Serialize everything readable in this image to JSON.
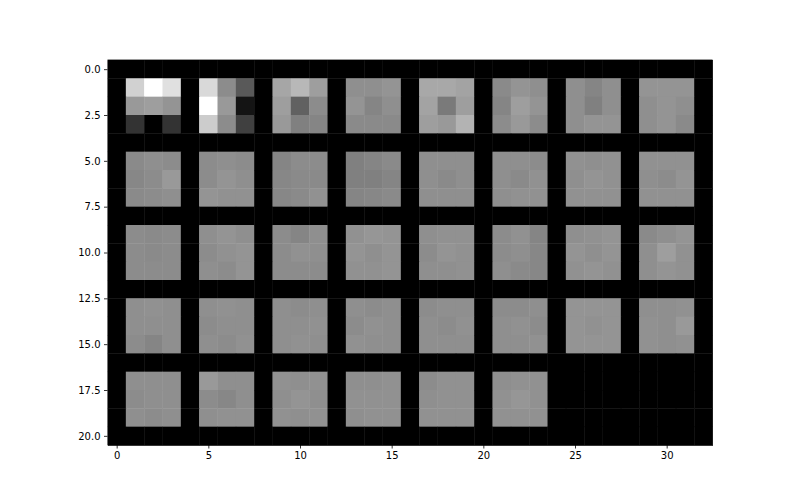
{
  "chart_data": {
    "type": "heatmap",
    "xlim": [
      -0.5,
      32.5
    ],
    "ylim": [
      20.5,
      -0.5
    ],
    "xticks": [
      0,
      5,
      10,
      15,
      20,
      25,
      30
    ],
    "yticks": [
      {
        "value": 0,
        "label": "0.0"
      },
      2.5,
      {
        "value": 5,
        "label": "5.0"
      },
      7.5,
      {
        "value": 10,
        "label": "10.0"
      },
      12.5,
      {
        "value": 15,
        "label": "15.0"
      },
      17.5,
      {
        "value": 20,
        "label": "20.0"
      }
    ],
    "cells": [
      [
        0,
        0,
        0,
        0,
        0,
        0,
        0,
        0,
        0,
        0,
        0,
        0,
        0,
        0,
        0,
        0,
        0,
        0,
        0,
        0,
        0,
        0,
        0,
        0,
        0,
        0,
        0,
        0,
        0,
        0,
        0,
        0,
        0
      ],
      [
        0,
        0.82,
        1.0,
        0.88,
        0,
        0.85,
        0.55,
        0.35,
        0,
        0.65,
        0.72,
        0.62,
        0,
        0.56,
        0.56,
        0.58,
        0,
        0.66,
        0.66,
        0.64,
        0,
        0.54,
        0.58,
        0.56,
        0,
        0.56,
        0.52,
        0.56,
        0,
        0.58,
        0.58,
        0.58,
        0
      ],
      [
        0,
        0.6,
        0.62,
        0.58,
        0,
        1.0,
        0.6,
        0.08,
        0,
        0.62,
        0.38,
        0.55,
        0,
        0.58,
        0.52,
        0.56,
        0,
        0.64,
        0.48,
        0.62,
        0,
        0.52,
        0.62,
        0.58,
        0,
        0.56,
        0.5,
        0.56,
        0,
        0.56,
        0.58,
        0.56,
        0
      ],
      [
        0,
        0.2,
        0.0,
        0.2,
        0,
        0.8,
        0.55,
        0.25,
        0,
        0.6,
        0.5,
        0.52,
        0,
        0.54,
        0.54,
        0.54,
        0,
        0.62,
        0.6,
        0.7,
        0,
        0.55,
        0.6,
        0.55,
        0,
        0.56,
        0.58,
        0.58,
        0,
        0.56,
        0.58,
        0.54,
        0
      ],
      [
        0,
        0,
        0,
        0,
        0,
        0,
        0,
        0,
        0,
        0,
        0,
        0,
        0,
        0,
        0,
        0,
        0,
        0,
        0,
        0,
        0,
        0,
        0,
        0,
        0,
        0,
        0,
        0,
        0,
        0,
        0,
        0,
        0
      ],
      [
        0,
        0.54,
        0.56,
        0.55,
        0,
        0.55,
        0.56,
        0.55,
        0,
        0.52,
        0.55,
        0.55,
        0,
        0.5,
        0.52,
        0.54,
        0,
        0.56,
        0.56,
        0.56,
        0,
        0.56,
        0.56,
        0.55,
        0,
        0.57,
        0.56,
        0.57,
        0,
        0.57,
        0.57,
        0.57,
        0
      ],
      [
        0,
        0.53,
        0.55,
        0.6,
        0,
        0.55,
        0.58,
        0.56,
        0,
        0.53,
        0.54,
        0.54,
        0,
        0.5,
        0.5,
        0.52,
        0,
        0.56,
        0.54,
        0.56,
        0,
        0.56,
        0.54,
        0.57,
        0,
        0.56,
        0.58,
        0.57,
        0,
        0.56,
        0.55,
        0.58,
        0
      ],
      [
        0,
        0.54,
        0.55,
        0.56,
        0,
        0.58,
        0.57,
        0.57,
        0,
        0.53,
        0.54,
        0.57,
        0,
        0.52,
        0.53,
        0.54,
        0,
        0.56,
        0.56,
        0.56,
        0,
        0.56,
        0.57,
        0.57,
        0,
        0.57,
        0.57,
        0.57,
        0,
        0.57,
        0.57,
        0.57,
        0
      ],
      [
        0,
        0,
        0,
        0,
        0,
        0,
        0,
        0,
        0,
        0,
        0,
        0,
        0,
        0,
        0,
        0,
        0,
        0,
        0,
        0,
        0,
        0,
        0,
        0,
        0,
        0,
        0,
        0,
        0,
        0,
        0,
        0,
        0
      ],
      [
        0,
        0.55,
        0.54,
        0.55,
        0,
        0.56,
        0.58,
        0.56,
        0,
        0.55,
        0.52,
        0.56,
        0,
        0.57,
        0.59,
        0.58,
        0,
        0.56,
        0.57,
        0.57,
        0,
        0.55,
        0.57,
        0.52,
        0,
        0.56,
        0.57,
        0.58,
        0,
        0.54,
        0.56,
        0.58,
        0
      ],
      [
        0,
        0.55,
        0.54,
        0.55,
        0,
        0.55,
        0.57,
        0.58,
        0,
        0.55,
        0.57,
        0.56,
        0,
        0.58,
        0.56,
        0.58,
        0,
        0.55,
        0.58,
        0.57,
        0,
        0.55,
        0.56,
        0.53,
        0,
        0.58,
        0.56,
        0.58,
        0,
        0.56,
        0.62,
        0.57,
        0
      ],
      [
        0,
        0.55,
        0.55,
        0.55,
        0,
        0.56,
        0.55,
        0.58,
        0,
        0.55,
        0.55,
        0.55,
        0,
        0.57,
        0.57,
        0.58,
        0,
        0.56,
        0.56,
        0.57,
        0,
        0.56,
        0.54,
        0.53,
        0,
        0.57,
        0.58,
        0.57,
        0,
        0.56,
        0.58,
        0.57,
        0
      ],
      [
        0,
        0,
        0,
        0,
        0,
        0,
        0,
        0,
        0,
        0,
        0,
        0,
        0,
        0,
        0,
        0,
        0,
        0,
        0,
        0,
        0,
        0,
        0,
        0,
        0,
        0,
        0,
        0,
        0,
        0,
        0,
        0,
        0
      ],
      [
        0,
        0.56,
        0.57,
        0.56,
        0,
        0.56,
        0.57,
        0.56,
        0,
        0.56,
        0.55,
        0.56,
        0,
        0.56,
        0.55,
        0.56,
        0,
        0.55,
        0.56,
        0.56,
        0,
        0.55,
        0.55,
        0.56,
        0,
        0.58,
        0.58,
        0.58,
        0,
        0.56,
        0.56,
        0.57,
        0
      ],
      [
        0,
        0.56,
        0.56,
        0.56,
        0,
        0.55,
        0.56,
        0.56,
        0,
        0.56,
        0.56,
        0.57,
        0,
        0.55,
        0.57,
        0.56,
        0,
        0.56,
        0.55,
        0.57,
        0,
        0.56,
        0.57,
        0.55,
        0,
        0.58,
        0.57,
        0.58,
        0,
        0.57,
        0.56,
        0.6,
        0
      ],
      [
        0,
        0.55,
        0.52,
        0.56,
        0,
        0.56,
        0.55,
        0.57,
        0,
        0.56,
        0.57,
        0.56,
        0,
        0.57,
        0.56,
        0.56,
        0,
        0.56,
        0.56,
        0.56,
        0,
        0.56,
        0.56,
        0.57,
        0,
        0.58,
        0.58,
        0.58,
        0,
        0.57,
        0.56,
        0.57,
        0
      ],
      [
        0,
        0,
        0,
        0,
        0,
        0,
        0,
        0,
        0,
        0,
        0,
        0,
        0,
        0,
        0,
        0,
        0,
        0,
        0,
        0,
        0,
        0,
        0,
        0,
        0,
        0,
        0,
        0,
        0,
        0,
        0,
        0,
        0
      ],
      [
        0,
        0.56,
        0.56,
        0.56,
        0,
        0.6,
        0.56,
        0.56,
        0,
        0.57,
        0.56,
        0.57,
        0,
        0.56,
        0.56,
        0.57,
        0,
        0.55,
        0.57,
        0.57,
        0,
        0.56,
        0.57,
        0.57,
        0,
        0,
        0,
        0,
        0,
        0,
        0,
        0,
        0
      ],
      [
        0,
        0.55,
        0.56,
        0.56,
        0,
        0.55,
        0.53,
        0.56,
        0,
        0.56,
        0.58,
        0.56,
        0,
        0.57,
        0.57,
        0.57,
        0,
        0.56,
        0.57,
        0.57,
        0,
        0.57,
        0.59,
        0.57,
        0,
        0,
        0,
        0,
        0,
        0,
        0,
        0,
        0
      ],
      [
        0,
        0.56,
        0.55,
        0.56,
        0,
        0.56,
        0.57,
        0.57,
        0,
        0.57,
        0.56,
        0.57,
        0,
        0.56,
        0.57,
        0.57,
        0,
        0.57,
        0.57,
        0.57,
        0,
        0.57,
        0.57,
        0.57,
        0,
        0,
        0,
        0,
        0,
        0,
        0,
        0,
        0
      ],
      [
        0,
        0,
        0,
        0,
        0,
        0,
        0,
        0,
        0,
        0,
        0,
        0,
        0,
        0,
        0,
        0,
        0,
        0,
        0,
        0,
        0,
        0,
        0,
        0,
        0,
        0,
        0,
        0,
        0,
        0,
        0,
        0,
        0
      ]
    ]
  }
}
